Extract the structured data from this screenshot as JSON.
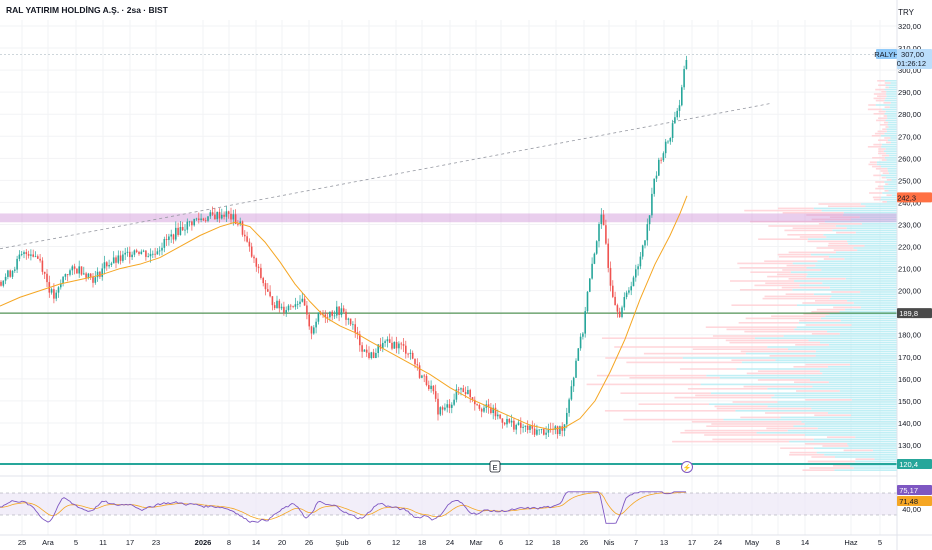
{
  "header": {
    "title": "RAL YATIRIM HOLDİNG A.Ş. · 2sa · BIST",
    "currency": "TRY"
  },
  "chart_data": {
    "type": "candlestick",
    "symbol": "RALYH",
    "interval": "2sa",
    "exchange": "BIST",
    "ylim": [
      123,
      325
    ],
    "y_ticks": [
      "320,00",
      "310,00",
      "300,00",
      "290,00",
      "280,00",
      "270,00",
      "260,00",
      "250,00",
      "240,00",
      "230,00",
      "220,00",
      "210,00",
      "200,00",
      "190,00",
      "180,00",
      "170,00",
      "160,00",
      "150,00",
      "140,00",
      "130,00"
    ],
    "x_ticks": [
      "25",
      "Ara",
      "5",
      "11",
      "17",
      "23",
      "2026",
      "8",
      "14",
      "20",
      "26",
      "Şub",
      "6",
      "12",
      "18",
      "24",
      "Mar",
      "6",
      "12",
      "18",
      "26",
      "Nis",
      "7",
      "13",
      "17",
      "24",
      "May",
      "8",
      "14",
      "Haz",
      "5"
    ],
    "price_path": [
      [
        0,
        204
      ],
      [
        10,
        208
      ],
      [
        20,
        215
      ],
      [
        30,
        218
      ],
      [
        40,
        214
      ],
      [
        50,
        200
      ],
      [
        55,
        196
      ],
      [
        65,
        208
      ],
      [
        80,
        210
      ],
      [
        95,
        205
      ],
      [
        105,
        212
      ],
      [
        120,
        214
      ],
      [
        135,
        219
      ],
      [
        150,
        216
      ],
      [
        165,
        222
      ],
      [
        180,
        228
      ],
      [
        195,
        232
      ],
      [
        205,
        233
      ],
      [
        215,
        234
      ],
      [
        225,
        235
      ],
      [
        232,
        233
      ],
      [
        240,
        230
      ],
      [
        248,
        220
      ],
      [
        255,
        212
      ],
      [
        262,
        205
      ],
      [
        270,
        196
      ],
      [
        278,
        193
      ],
      [
        285,
        192
      ],
      [
        292,
        194
      ],
      [
        300,
        196
      ],
      [
        305,
        192
      ],
      [
        310,
        180
      ],
      [
        315,
        186
      ],
      [
        320,
        189
      ],
      [
        330,
        190
      ],
      [
        340,
        191
      ],
      [
        350,
        186
      ],
      [
        358,
        178
      ],
      [
        365,
        172
      ],
      [
        372,
        170
      ],
      [
        380,
        175
      ],
      [
        390,
        176
      ],
      [
        400,
        175
      ],
      [
        410,
        172
      ],
      [
        420,
        162
      ],
      [
        430,
        157
      ],
      [
        438,
        146
      ],
      [
        445,
        146
      ],
      [
        452,
        150
      ],
      [
        460,
        156
      ],
      [
        468,
        154
      ],
      [
        475,
        150
      ],
      [
        482,
        147
      ],
      [
        490,
        146
      ],
      [
        500,
        142
      ],
      [
        510,
        140
      ],
      [
        520,
        138
      ],
      [
        530,
        137
      ],
      [
        540,
        136
      ],
      [
        550,
        137
      ],
      [
        558,
        136
      ],
      [
        565,
        140
      ],
      [
        570,
        155
      ],
      [
        574,
        162
      ],
      [
        578,
        175
      ],
      [
        582,
        178
      ],
      [
        586,
        195
      ],
      [
        590,
        205
      ],
      [
        595,
        218
      ],
      [
        600,
        235
      ],
      [
        605,
        225
      ],
      [
        610,
        205
      ],
      [
        615,
        195
      ],
      [
        620,
        190
      ],
      [
        625,
        196
      ],
      [
        632,
        205
      ],
      [
        638,
        210
      ],
      [
        642,
        220
      ],
      [
        648,
        230
      ],
      [
        652,
        245
      ],
      [
        656,
        252
      ],
      [
        660,
        260
      ],
      [
        665,
        265
      ],
      [
        670,
        270
      ],
      [
        675,
        280
      ],
      [
        680,
        285
      ],
      [
        684,
        298
      ],
      [
        687,
        307
      ]
    ],
    "ma_path": [
      [
        0,
        193
      ],
      [
        20,
        197
      ],
      [
        40,
        200
      ],
      [
        60,
        203
      ],
      [
        80,
        205
      ],
      [
        100,
        207
      ],
      [
        120,
        210
      ],
      [
        140,
        212
      ],
      [
        160,
        215
      ],
      [
        180,
        220
      ],
      [
        200,
        225
      ],
      [
        220,
        229
      ],
      [
        235,
        231
      ],
      [
        250,
        229
      ],
      [
        265,
        222
      ],
      [
        280,
        213
      ],
      [
        295,
        203
      ],
      [
        310,
        195
      ],
      [
        325,
        188
      ],
      [
        340,
        184
      ],
      [
        355,
        181
      ],
      [
        370,
        177
      ],
      [
        390,
        172
      ],
      [
        410,
        167
      ],
      [
        430,
        162
      ],
      [
        450,
        156
      ],
      [
        470,
        151
      ],
      [
        490,
        147
      ],
      [
        510,
        143
      ],
      [
        530,
        139
      ],
      [
        550,
        137
      ],
      [
        565,
        138
      ],
      [
        580,
        142
      ],
      [
        595,
        150
      ],
      [
        610,
        163
      ],
      [
        625,
        178
      ],
      [
        640,
        196
      ],
      [
        655,
        212
      ],
      [
        670,
        225
      ],
      [
        680,
        235
      ],
      [
        687,
        243
      ]
    ],
    "trendline": {
      "start": [
        0,
        219
      ],
      "end": [
        772,
        285
      ],
      "style": "dashed"
    },
    "levels": [
      {
        "price": 189.8,
        "label": "189,8",
        "kind": "horizontal-line"
      },
      {
        "price": 120.4,
        "label": "120,4",
        "kind": "horizontal-line"
      },
      {
        "price_range": [
          231,
          235
        ],
        "kind": "resistance-band"
      }
    ],
    "price_labels": {
      "last": {
        "value": "307,00",
        "symbol": "RALYH",
        "countdown": "01:26:12"
      },
      "ma": "242,3",
      "line1": "189,8",
      "line2": "120,4"
    },
    "markers": {
      "earnings": "E",
      "dividend": "⚡"
    },
    "volume_profile_note": "horizontal volume profile on right side",
    "rsi": {
      "levels": [
        "71,48",
        "40,00"
      ],
      "current": "75,17"
    }
  }
}
